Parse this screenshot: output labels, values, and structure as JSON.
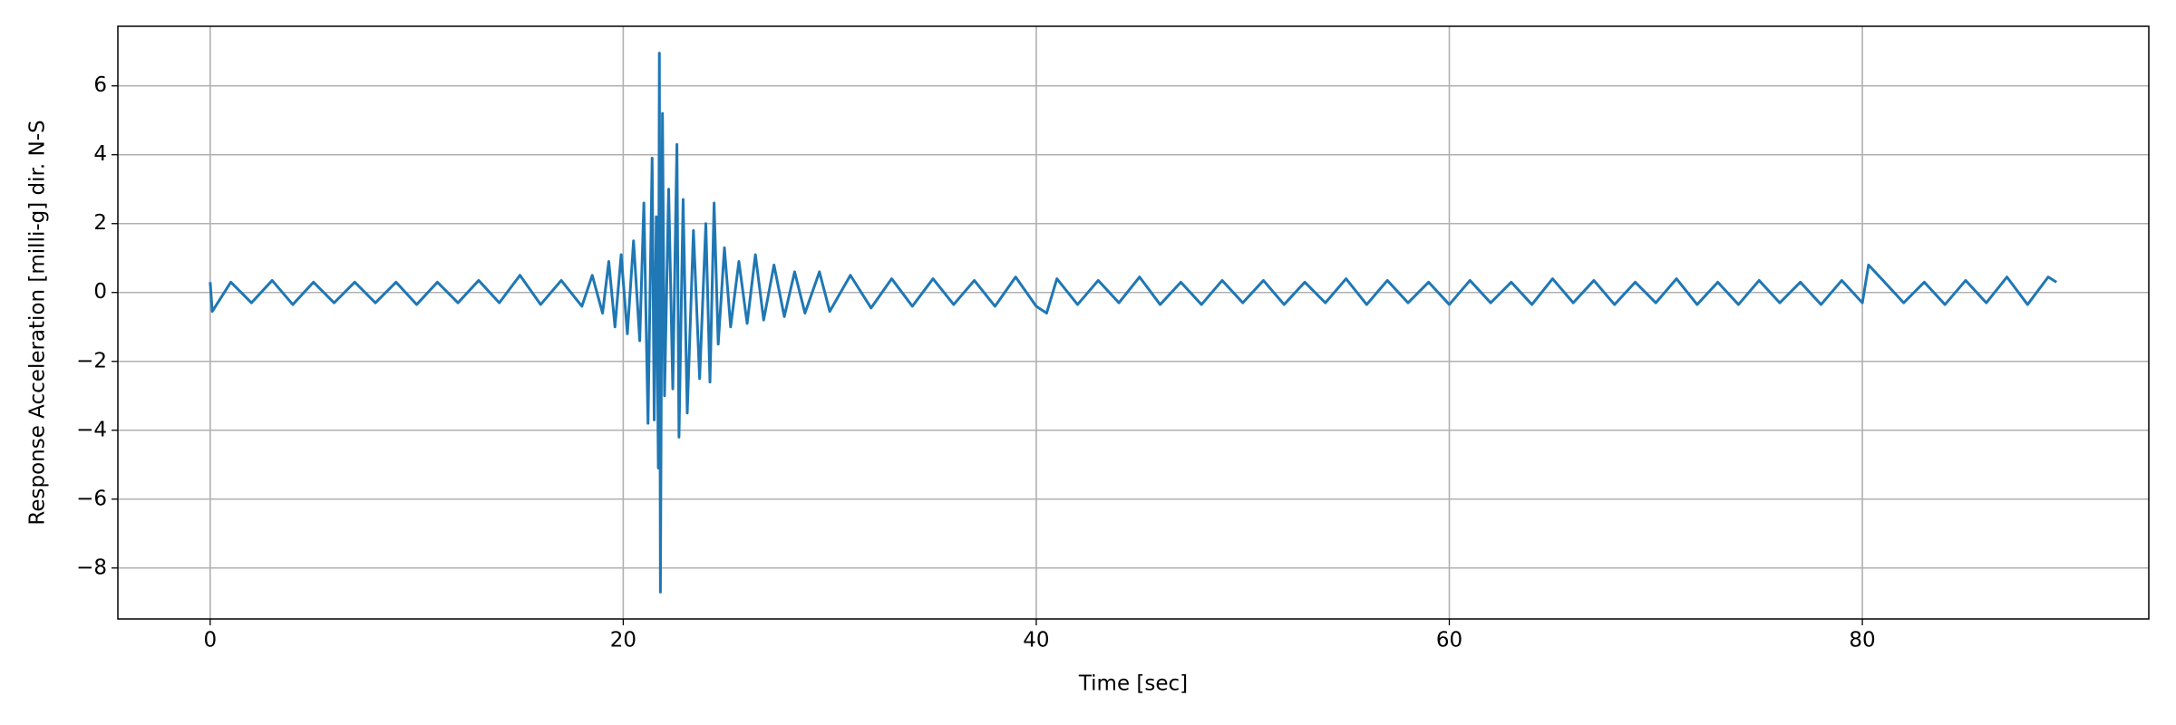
{
  "chart_data": {
    "type": "line",
    "xlabel": "Time [sec]",
    "ylabel": "Response Acceleration [milli-g] dir. N-S",
    "color": "#1f77b4",
    "grid": true,
    "xlim": [
      -4.47,
      93.87
    ],
    "ylim": [
      -9.48,
      7.73
    ],
    "xticks": [
      0,
      20,
      40,
      60,
      80
    ],
    "yticks": [
      {
        "value": -8,
        "label": "−8"
      },
      {
        "value": -6,
        "label": "−6"
      },
      {
        "value": -4,
        "label": "−4"
      },
      {
        "value": -2,
        "label": "−2"
      },
      0,
      2,
      4,
      6
    ],
    "x": [
      0,
      0.1,
      1,
      2,
      3,
      4,
      5,
      6,
      7,
      8,
      9,
      10,
      11,
      12,
      13,
      14,
      15,
      16,
      17,
      18,
      18.5,
      19,
      19.3,
      19.6,
      19.9,
      20.2,
      20.5,
      20.8,
      21,
      21.2,
      21.4,
      21.5,
      21.6,
      21.7,
      21.75,
      21.8,
      21.9,
      22,
      22.2,
      22.4,
      22.6,
      22.7,
      22.9,
      23.1,
      23.4,
      23.7,
      24,
      24.2,
      24.4,
      24.6,
      24.9,
      25.2,
      25.6,
      26,
      26.4,
      26.8,
      27.3,
      27.8,
      28.3,
      28.8,
      29.5,
      30,
      31,
      32,
      33,
      34,
      35,
      36,
      37,
      38,
      39,
      40,
      40.5,
      41,
      42,
      43,
      44,
      45,
      46,
      47,
      48,
      49,
      50,
      51,
      52,
      53,
      54,
      55,
      56,
      57,
      58,
      59,
      60,
      61,
      62,
      63,
      64,
      65,
      66,
      67,
      68,
      69,
      70,
      71,
      72,
      73,
      74,
      75,
      76,
      77,
      78,
      79,
      80,
      80.3,
      81,
      82,
      83,
      84,
      85,
      86,
      87,
      88,
      89,
      89.4
    ],
    "values": [
      0.3,
      -0.55,
      0.3,
      -0.3,
      0.35,
      -0.35,
      0.3,
      -0.3,
      0.3,
      -0.3,
      0.3,
      -0.35,
      0.3,
      -0.3,
      0.35,
      -0.3,
      0.5,
      -0.35,
      0.35,
      -0.4,
      0.5,
      -0.6,
      0.9,
      -1.0,
      1.1,
      -1.2,
      1.5,
      -1.4,
      2.6,
      -3.8,
      3.9,
      -3.7,
      2.2,
      -5.1,
      6.95,
      -8.7,
      5.2,
      -3.0,
      3.0,
      -2.8,
      4.3,
      -4.2,
      2.7,
      -3.5,
      1.8,
      -2.5,
      2.0,
      -2.6,
      2.6,
      -1.5,
      1.3,
      -1.0,
      0.9,
      -0.9,
      1.1,
      -0.8,
      0.8,
      -0.7,
      0.6,
      -0.6,
      0.6,
      -0.55,
      0.5,
      -0.45,
      0.4,
      -0.4,
      0.4,
      -0.35,
      0.35,
      -0.4,
      0.45,
      -0.4,
      -0.6,
      0.4,
      -0.35,
      0.35,
      -0.3,
      0.45,
      -0.35,
      0.3,
      -0.35,
      0.35,
      -0.3,
      0.35,
      -0.35,
      0.3,
      -0.3,
      0.4,
      -0.35,
      0.35,
      -0.3,
      0.3,
      -0.35,
      0.35,
      -0.3,
      0.3,
      -0.35,
      0.4,
      -0.3,
      0.35,
      -0.35,
      0.3,
      -0.3,
      0.4,
      -0.35,
      0.3,
      -0.35,
      0.35,
      -0.3,
      0.3,
      -0.35,
      0.35,
      -0.3,
      0.8,
      0.35,
      -0.3,
      0.3,
      -0.35,
      0.35,
      -0.3,
      0.45,
      -0.35,
      0.45,
      0.3
    ]
  }
}
